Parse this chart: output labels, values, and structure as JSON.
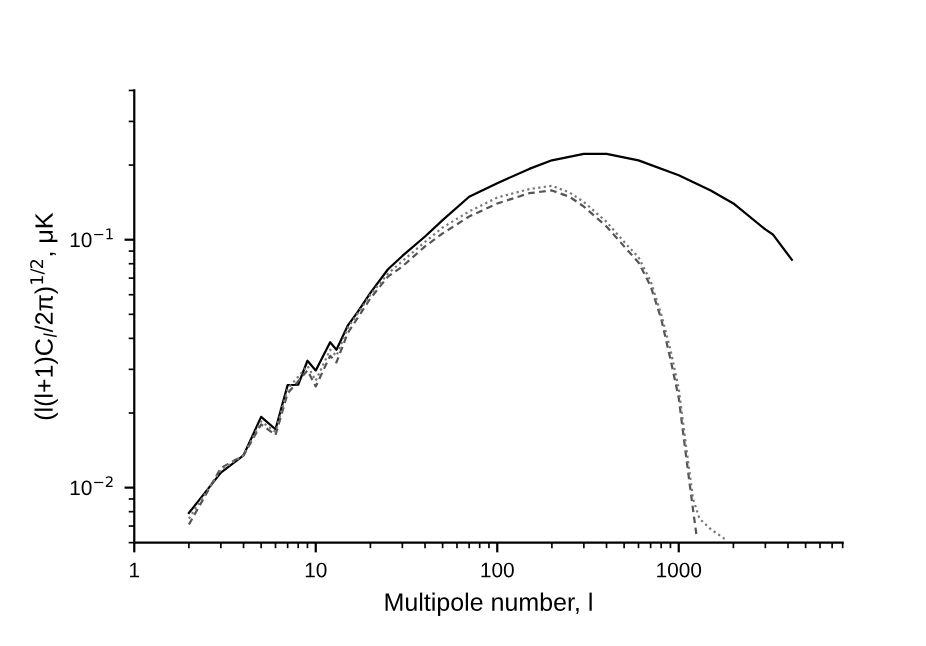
{
  "chart_data": {
    "type": "line",
    "xlabel": "Multipole number, l",
    "ylabel": "(l(l+1)C$_{l}$/2π)$^{1/2}$, μK",
    "log": "xy",
    "grid": false,
    "legend": false,
    "marker": "none",
    "xlim": [
      1,
      8000
    ],
    "ylim": [
      0.006,
      0.4
    ],
    "xticks": [
      1,
      10,
      100,
      1000
    ],
    "yticks": [
      {
        "value": 0.01,
        "label": "10$^{−2}$"
      },
      {
        "value": 0.1,
        "label": "10$^{−1}$"
      }
    ],
    "series": [
      {
        "color": "#000000",
        "line_style": "solid",
        "x": [
          2,
          3,
          4,
          5,
          6,
          7,
          8,
          9,
          10,
          12,
          13,
          15,
          17,
          20,
          25,
          30,
          40,
          50,
          70,
          100,
          150,
          200,
          300,
          400,
          600,
          1000,
          1500,
          2000,
          3000,
          3300,
          4200
        ],
        "values": [
          0.0079,
          0.0115,
          0.0135,
          0.0193,
          0.0172,
          0.0259,
          0.026,
          0.0325,
          0.0297,
          0.0386,
          0.036,
          0.045,
          0.051,
          0.061,
          0.076,
          0.086,
          0.103,
          0.12,
          0.149,
          0.169,
          0.193,
          0.209,
          0.222,
          0.222,
          0.209,
          0.182,
          0.158,
          0.14,
          0.11,
          0.105,
          0.083
        ]
      },
      {
        "color": "#555555",
        "line_style": "dashed",
        "x": [
          2,
          3,
          4,
          5,
          6,
          7,
          9,
          10,
          12,
          13,
          15,
          20,
          25,
          30,
          40,
          50,
          70,
          100,
          150,
          200,
          250,
          300,
          400,
          500,
          600,
          700,
          800,
          900,
          1000,
          1100,
          1200,
          1250
        ],
        "values": [
          0.0071,
          0.012,
          0.0135,
          0.018,
          0.0163,
          0.024,
          0.0297,
          0.0256,
          0.034,
          0.032,
          0.042,
          0.058,
          0.071,
          0.078,
          0.094,
          0.106,
          0.124,
          0.14,
          0.154,
          0.158,
          0.149,
          0.136,
          0.113,
          0.094,
          0.081,
          0.065,
          0.048,
          0.033,
          0.023,
          0.0132,
          0.0081,
          0.0065
        ]
      },
      {
        "color": "#777777",
        "line_style": "dotted",
        "x": [
          2,
          3,
          4,
          5,
          6,
          7,
          9,
          10,
          12,
          13,
          15,
          20,
          25,
          30,
          40,
          50,
          70,
          100,
          150,
          200,
          250,
          300,
          400,
          500,
          600,
          700,
          800,
          900,
          1000,
          1100,
          1200,
          1300,
          1500,
          1800
        ],
        "values": [
          0.0075,
          0.0118,
          0.0135,
          0.0185,
          0.0168,
          0.025,
          0.031,
          0.027,
          0.036,
          0.034,
          0.044,
          0.06,
          0.073,
          0.082,
          0.098,
          0.112,
          0.13,
          0.148,
          0.16,
          0.165,
          0.155,
          0.142,
          0.118,
          0.098,
          0.085,
          0.068,
          0.05,
          0.036,
          0.025,
          0.0145,
          0.009,
          0.0075,
          0.0068,
          0.0062
        ]
      }
    ]
  }
}
